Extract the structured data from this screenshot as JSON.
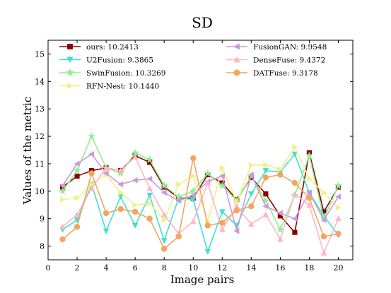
{
  "chart_data": {
    "type": "line",
    "title": "SD",
    "xlabel": "Image pairs",
    "ylabel": "Values of the metric",
    "xlim": [
      0,
      21
    ],
    "ylim": [
      7.5,
      15.5
    ],
    "xticks": [
      0,
      2,
      4,
      6,
      8,
      10,
      12,
      14,
      16,
      18,
      20
    ],
    "yticks": [
      8,
      9,
      10,
      11,
      12,
      13,
      14,
      15
    ],
    "grid": false,
    "legend_position": "top",
    "x": [
      1,
      2,
      3,
      4,
      5,
      6,
      7,
      8,
      9,
      10,
      11,
      12,
      13,
      14,
      15,
      16,
      17,
      18,
      19,
      20
    ],
    "series": [
      {
        "name": "ours: 10.2413",
        "color": "#8B0000",
        "marker": "square",
        "values": [
          10.15,
          10.55,
          10.75,
          10.85,
          10.75,
          11.3,
          11.05,
          10.15,
          9.75,
          9.75,
          10.6,
          10.3,
          9.7,
          10.5,
          9.9,
          9.1,
          8.5,
          11.4,
          9.25,
          10.15
        ]
      },
      {
        "name": "U2Fusion: 9.3865",
        "color": "#40E0D0",
        "marker": "triangle-down",
        "values": [
          8.6,
          8.95,
          10.25,
          8.55,
          9.8,
          8.75,
          9.85,
          8.2,
          9.75,
          9.7,
          7.8,
          9.25,
          8.75,
          9.9,
          10.75,
          10.7,
          11.35,
          9.95,
          9.1,
          8.4
        ]
      },
      {
        "name": "SwinFusion: 10.3269",
        "color": "#90EE90",
        "marker": "star",
        "values": [
          10.0,
          10.75,
          12.0,
          10.85,
          10.65,
          11.4,
          11.15,
          10.2,
          9.8,
          10.0,
          10.65,
          10.2,
          9.65,
          10.55,
          9.65,
          8.6,
          9.85,
          11.3,
          9.0,
          10.2
        ]
      },
      {
        "name": "RFN-Nest: 10.1440",
        "color": "#F0F08C",
        "marker": "triangle-right",
        "values": [
          9.7,
          9.75,
          10.25,
          10.6,
          9.95,
          9.5,
          9.55,
          8.95,
          10.25,
          10.55,
          8.9,
          10.85,
          9.6,
          10.95,
          10.95,
          10.8,
          11.6,
          10.45,
          9.95,
          9.4
        ]
      },
      {
        "name": "FusionGAN: 9.9548",
        "color": "#CC99DD",
        "marker": "triangle-left",
        "values": [
          10.2,
          11.0,
          11.35,
          10.65,
          10.25,
          10.4,
          10.45,
          9.95,
          9.65,
          9.85,
          10.35,
          10.55,
          8.55,
          10.6,
          9.45,
          9.2,
          9.0,
          9.95,
          8.95,
          9.8
        ]
      },
      {
        "name": "DenseFuse: 9.4372",
        "color": "#FFB6C1",
        "marker": "triangle-up",
        "values": [
          8.7,
          9.15,
          10.1,
          10.85,
          10.75,
          11.25,
          10.1,
          9.15,
          8.45,
          8.9,
          10.3,
          8.6,
          9.45,
          8.8,
          9.15,
          8.25,
          9.9,
          9.5,
          7.75,
          9.0
        ]
      },
      {
        "name": "DATFuse: 9.3178",
        "color": "#F4A460",
        "marker": "circle",
        "values": [
          8.25,
          8.7,
          10.65,
          9.2,
          9.35,
          9.25,
          9.0,
          7.9,
          8.35,
          11.2,
          8.75,
          8.85,
          9.3,
          9.45,
          10.5,
          10.6,
          10.3,
          9.75,
          8.35,
          8.45
        ]
      }
    ]
  }
}
